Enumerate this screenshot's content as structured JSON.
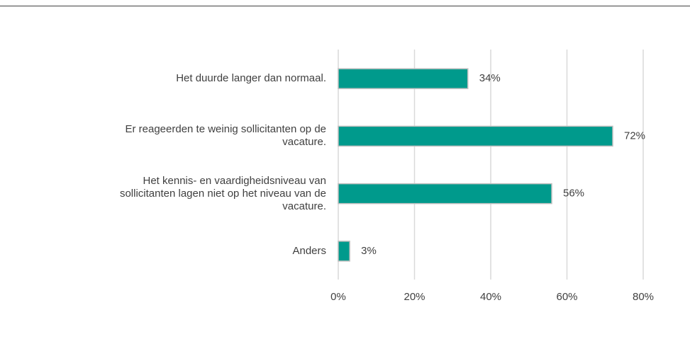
{
  "chart_data": {
    "type": "bar",
    "orientation": "horizontal",
    "categories": [
      "Het duurde langer dan normaal.",
      "Er reageerden te weinig sollicitanten op de\nvacature.",
      "Het kennis- en vaardigheidsniveau van\nsollicitanten lagen niet op het niveau van de\nvacature.",
      "Anders"
    ],
    "values": [
      34,
      72,
      56,
      3
    ],
    "value_labels": [
      "34%",
      "72%",
      "56%",
      "3%"
    ],
    "color": "#009a8c",
    "xlim": [
      0,
      80
    ],
    "xticks": [
      {
        "value": 0,
        "label": "0%"
      },
      {
        "value": 20,
        "label": "20%"
      },
      {
        "value": 40,
        "label": "40%"
      },
      {
        "value": 60,
        "label": "60%"
      },
      {
        "value": 80,
        "label": "80%"
      }
    ],
    "grid": true
  }
}
